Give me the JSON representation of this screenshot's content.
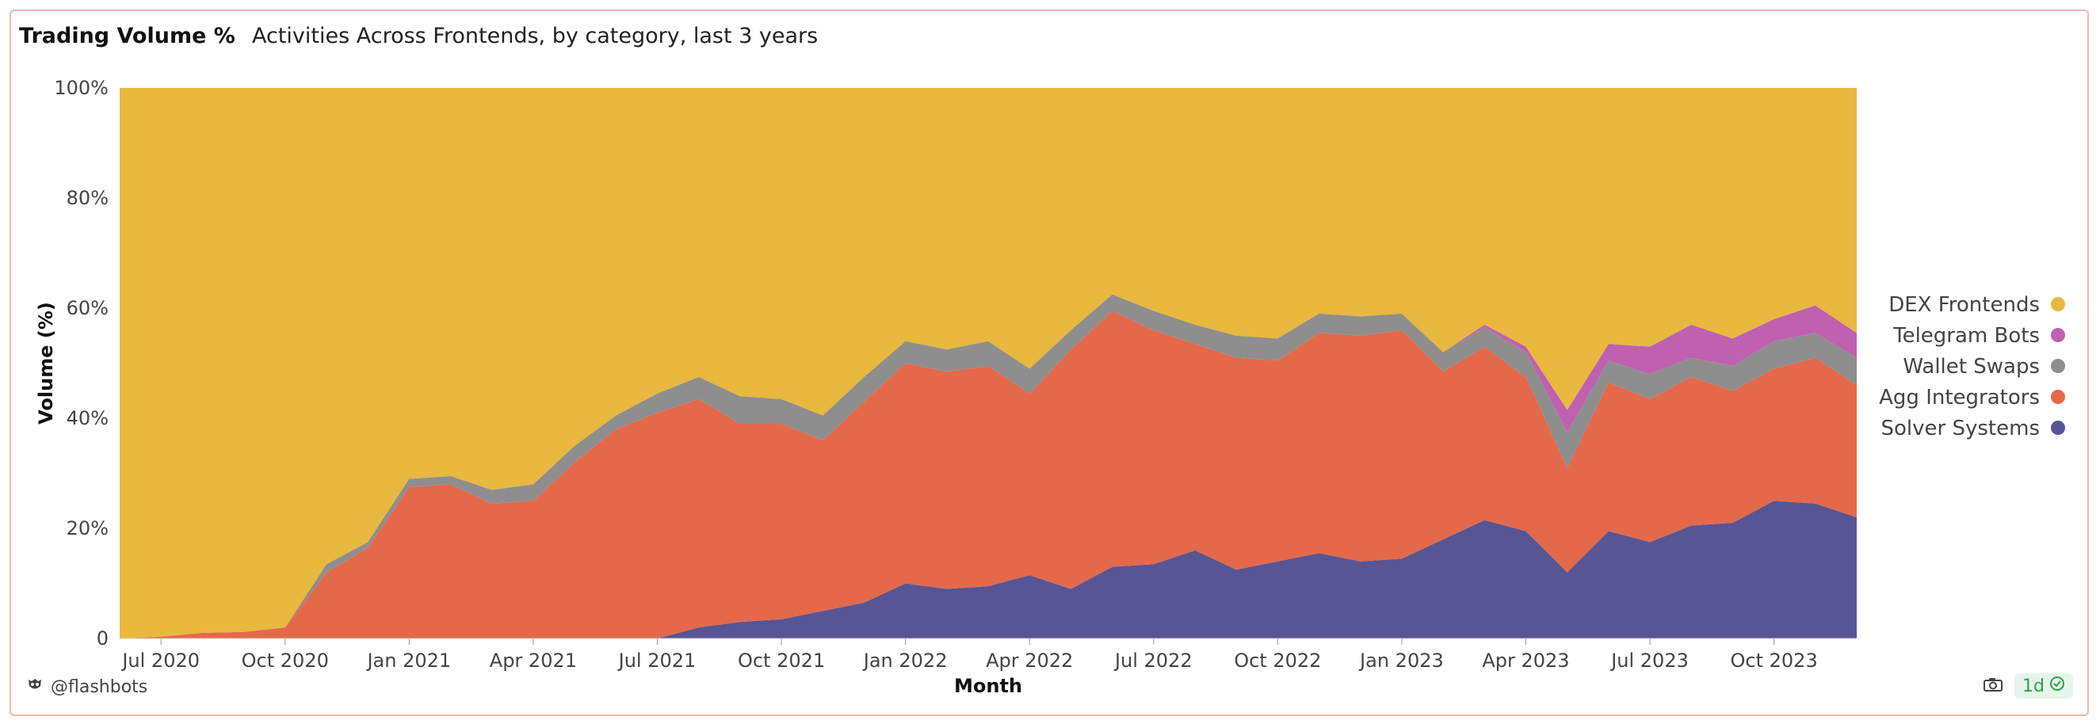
{
  "header": {
    "title": "Trading Volume %",
    "subtitle": "Activities Across Frontends, by category, last 3 years"
  },
  "footer": {
    "handle": "@flashbots",
    "refresh": "1d",
    "icons": [
      "owl-logo-icon",
      "camera-icon",
      "check-circle-icon"
    ]
  },
  "chart_data": {
    "type": "area",
    "stacked": true,
    "normalized": true,
    "xlabel": "Month",
    "ylabel": "Volume (%)",
    "ylim": [
      0,
      100
    ],
    "y_ticks": [
      "0",
      "20%",
      "40%",
      "60%",
      "80%",
      "100%"
    ],
    "x_ticks": [
      {
        "label": "Jul 2020",
        "x": "2020-07"
      },
      {
        "label": "Oct 2020",
        "x": "2020-10"
      },
      {
        "label": "Jan 2021",
        "x": "2021-01"
      },
      {
        "label": "Apr 2021",
        "x": "2021-04"
      },
      {
        "label": "Jul 2021",
        "x": "2021-07"
      },
      {
        "label": "Oct 2021",
        "x": "2021-10"
      },
      {
        "label": "Jan 2022",
        "x": "2022-01"
      },
      {
        "label": "Apr 2022",
        "x": "2022-04"
      },
      {
        "label": "Jul 2022",
        "x": "2022-07"
      },
      {
        "label": "Oct 2022",
        "x": "2022-10"
      },
      {
        "label": "Jan 2023",
        "x": "2023-01"
      },
      {
        "label": "Apr 2023",
        "x": "2023-04"
      },
      {
        "label": "Jul 2023",
        "x": "2023-07"
      },
      {
        "label": "Oct 2023",
        "x": "2023-10"
      }
    ],
    "grid": false,
    "legend_position": "right",
    "x": [
      "2020-06",
      "2020-07",
      "2020-08",
      "2020-09",
      "2020-10",
      "2020-11",
      "2020-12",
      "2021-01",
      "2021-02",
      "2021-03",
      "2021-04",
      "2021-05",
      "2021-06",
      "2021-07",
      "2021-08",
      "2021-09",
      "2021-10",
      "2021-11",
      "2021-12",
      "2022-01",
      "2022-02",
      "2022-03",
      "2022-04",
      "2022-05",
      "2022-06",
      "2022-07",
      "2022-08",
      "2022-09",
      "2022-10",
      "2022-11",
      "2022-12",
      "2023-01",
      "2023-02",
      "2023-03",
      "2023-04",
      "2023-05",
      "2023-06",
      "2023-07",
      "2023-08",
      "2023-09",
      "2023-10",
      "2023-11",
      "2023-12"
    ],
    "series": [
      {
        "name": "Solver Systems",
        "color": "#575594",
        "values": [
          0,
          0,
          0,
          0,
          0,
          0,
          0,
          0,
          0,
          0,
          0,
          0,
          0,
          0,
          2,
          3,
          3.5,
          5,
          6.5,
          10,
          9,
          9.5,
          11.5,
          9,
          13,
          13.5,
          16,
          12.5,
          14,
          15.5,
          14,
          14.5,
          18,
          21.5,
          19.5,
          12,
          19.5,
          17.5,
          20.5,
          21,
          25,
          24.5,
          22
        ]
      },
      {
        "name": "Agg Integrators",
        "color": "#e4694a",
        "values": [
          0,
          0.3,
          1,
          1.2,
          2,
          12,
          16.5,
          27.5,
          28,
          24.5,
          25,
          32,
          38,
          41,
          41.5,
          36,
          35.5,
          31,
          36.5,
          40,
          39.5,
          40,
          33,
          43.5,
          46.5,
          42.5,
          37.5,
          38.5,
          36.5,
          40,
          41,
          41.5,
          30.5,
          31.5,
          28,
          19,
          27,
          26,
          27,
          24,
          24,
          26.5,
          24
        ]
      },
      {
        "name": "Wallet Swaps",
        "color": "#8e8e8e",
        "values": [
          0,
          0,
          0,
          0,
          0,
          1.5,
          1,
          1.5,
          1.5,
          2.5,
          3,
          3,
          2.5,
          3.5,
          4,
          5,
          4.5,
          4.5,
          4.5,
          4,
          4,
          4.5,
          4.5,
          3.5,
          3,
          3.5,
          3.5,
          4,
          4,
          3.5,
          3.5,
          3,
          3.5,
          3.5,
          4.5,
          6.5,
          4,
          4.5,
          3.5,
          4.5,
          5,
          4.5,
          5
        ]
      },
      {
        "name": "Telegram Bots",
        "color": "#c060b0",
        "values": [
          0,
          0,
          0,
          0,
          0,
          0,
          0,
          0,
          0,
          0,
          0,
          0,
          0,
          0,
          0,
          0,
          0,
          0,
          0,
          0,
          0,
          0,
          0,
          0,
          0,
          0,
          0,
          0,
          0,
          0,
          0,
          0,
          0,
          0.5,
          1,
          4,
          3,
          5,
          6,
          5,
          4,
          5,
          4.5
        ]
      },
      {
        "name": "DEX Frontends",
        "color": "#e8b83f",
        "values": [
          100,
          99.7,
          99,
          98.8,
          98,
          86.5,
          82.5,
          71,
          70.5,
          73,
          72,
          65,
          59.5,
          55.5,
          52.5,
          56,
          56.5,
          59.5,
          52.5,
          46,
          47.5,
          46,
          51,
          44,
          37.5,
          40.5,
          43,
          45,
          45.5,
          41,
          41.5,
          41,
          48,
          43,
          47,
          58.5,
          46.5,
          47,
          43,
          45.5,
          42,
          39.5,
          44.5
        ]
      }
    ],
    "legend_order": [
      "DEX Frontends",
      "Telegram Bots",
      "Wallet Swaps",
      "Agg Integrators",
      "Solver Systems"
    ]
  }
}
